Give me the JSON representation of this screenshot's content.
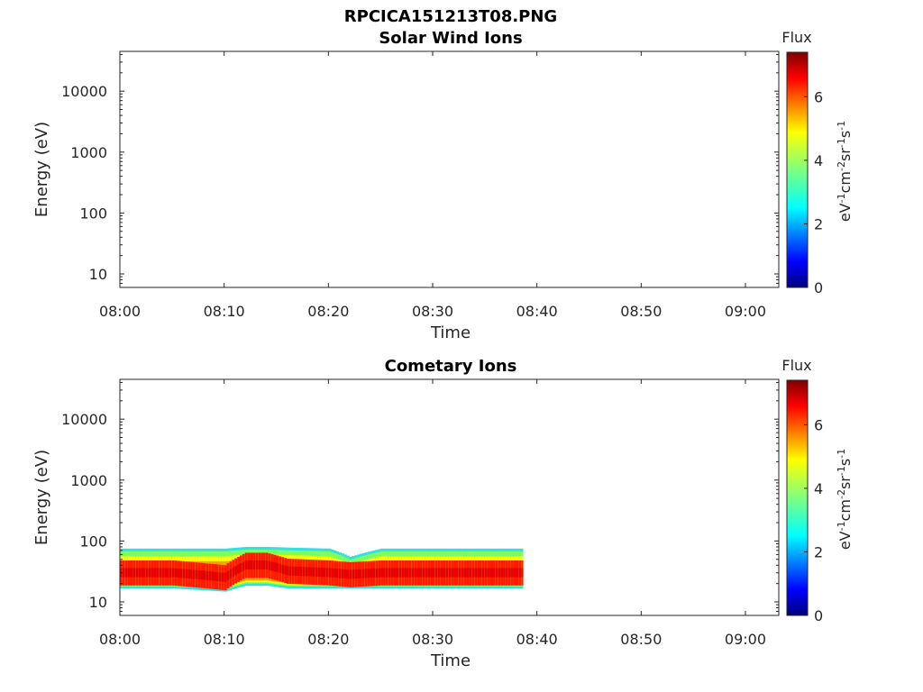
{
  "figure": {
    "title": "RPCICA151213T08.PNG"
  },
  "chart_data": [
    {
      "type": "heatmap",
      "title": "Solar Wind Ions",
      "xlabel": "Time",
      "ylabel": "Energy (eV)",
      "x_ticks": [
        "08:00",
        "08:10",
        "08:20",
        "08:30",
        "08:40",
        "08:50",
        "09:00"
      ],
      "y_ticks": [
        "10",
        "100",
        "1000",
        "10000"
      ],
      "y_scale": "log",
      "ylim": [
        6,
        45000
      ],
      "colorbar": {
        "title": "Flux",
        "label": "eV-1cm-2sr-1s-1",
        "ticks": [
          "0",
          "2",
          "4",
          "6"
        ],
        "range": [
          0,
          7.4
        ]
      },
      "data": []
    },
    {
      "type": "heatmap",
      "title": "Cometary Ions",
      "xlabel": "Time",
      "ylabel": "Energy (eV)",
      "x_ticks": [
        "08:00",
        "08:10",
        "08:20",
        "08:30",
        "08:40",
        "08:50",
        "09:00"
      ],
      "y_ticks": [
        "10",
        "100",
        "1000",
        "10000"
      ],
      "y_scale": "log",
      "ylim": [
        6,
        45000
      ],
      "colorbar": {
        "title": "Flux",
        "label": "eV-1cm-2sr-1s-1",
        "ticks": [
          "0",
          "2",
          "4",
          "6"
        ],
        "range": [
          0,
          7.4
        ]
      },
      "data_extent": {
        "time_start": "08:00",
        "time_end": "08:38:40",
        "energy_min_eV": 15,
        "energy_max_eV": 80
      },
      "band": [
        {
          "time": "08:00",
          "e_low": 18,
          "e_high": 75,
          "peak": 30
        },
        {
          "time": "08:05",
          "e_low": 18,
          "e_high": 75,
          "peak": 30
        },
        {
          "time": "08:10",
          "e_low": 16,
          "e_high": 75,
          "peak": 25
        },
        {
          "time": "08:12",
          "e_low": 20,
          "e_high": 80,
          "peak": 40
        },
        {
          "time": "08:14",
          "e_low": 20,
          "e_high": 80,
          "peak": 40
        },
        {
          "time": "08:16",
          "e_low": 18,
          "e_high": 78,
          "peak": 32
        },
        {
          "time": "08:20",
          "e_low": 18,
          "e_high": 75,
          "peak": 30
        },
        {
          "time": "08:22",
          "e_low": 18,
          "e_high": 55,
          "peak": 28
        },
        {
          "time": "08:25",
          "e_low": 18,
          "e_high": 75,
          "peak": 30
        },
        {
          "time": "08:30",
          "e_low": 18,
          "e_high": 75,
          "peak": 30
        },
        {
          "time": "08:35",
          "e_low": 18,
          "e_high": 75,
          "peak": 30
        },
        {
          "time": "08:38",
          "e_low": 18,
          "e_high": 75,
          "peak": 30
        }
      ]
    }
  ]
}
